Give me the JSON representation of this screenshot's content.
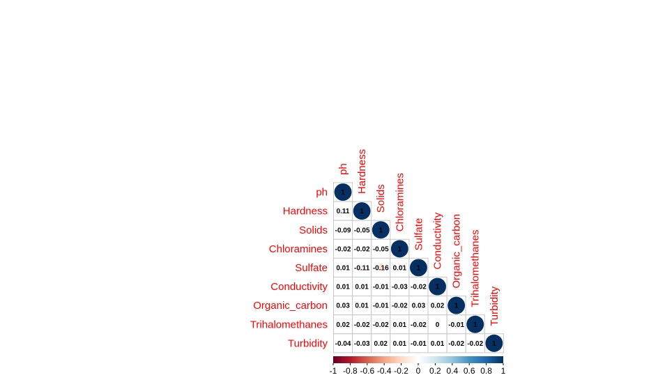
{
  "chart_data": {
    "type": "heatmap",
    "variables": [
      "ph",
      "Hardness",
      "Solids",
      "Chloramines",
      "Sulfate",
      "Conductivity",
      "Organic_carbon",
      "Trihalomethanes",
      "Turbidity"
    ],
    "matrix": [
      [
        1
      ],
      [
        0.11,
        1
      ],
      [
        -0.09,
        -0.05,
        1
      ],
      [
        -0.02,
        -0.02,
        -0.05,
        1
      ],
      [
        0.01,
        -0.11,
        -0.16,
        0.01,
        1
      ],
      [
        0.01,
        0.01,
        -0.01,
        -0.03,
        -0.02,
        1
      ],
      [
        0.03,
        0.01,
        -0.01,
        -0.02,
        0.03,
        0.02,
        1
      ],
      [
        0.02,
        -0.02,
        -0.02,
        0.01,
        -0.02,
        0,
        -0.01,
        1
      ],
      [
        -0.04,
        -0.03,
        0.02,
        0.01,
        -0.01,
        0.01,
        -0.02,
        -0.02,
        1
      ]
    ],
    "display": "lower",
    "method": "circle",
    "label_color": "#ff0000",
    "colorbar": {
      "ticks": [
        -1,
        -0.8,
        -0.6,
        -0.4,
        -0.2,
        0,
        0.2,
        0.4,
        0.6,
        0.8,
        1
      ],
      "colors": [
        "#67001f",
        "#b2182b",
        "#d6604d",
        "#f4a582",
        "#fddbc7",
        "#ffffff",
        "#d1e5f0",
        "#92c5de",
        "#4393c3",
        "#2166ac",
        "#053061"
      ]
    }
  }
}
